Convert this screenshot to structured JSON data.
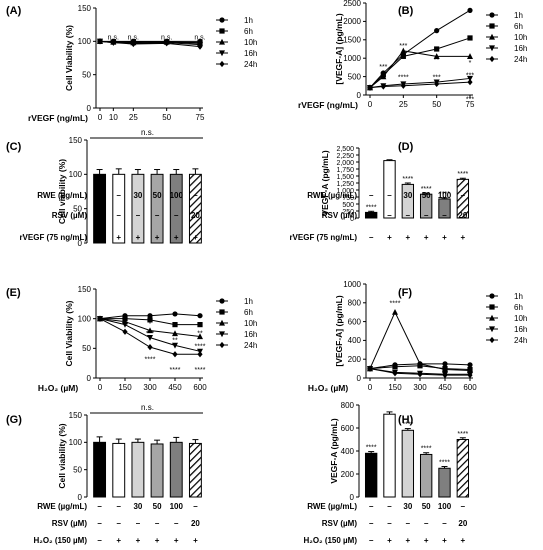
{
  "chart_data": [
    {
      "panel": "(A)",
      "type": "line",
      "ylabel": "Cell Viability (%)",
      "xlabel": "rVEGF (ng/mL)",
      "x": [
        0,
        10,
        25,
        50,
        75
      ],
      "ylim": [
        0,
        150
      ],
      "yticks": [
        0,
        50,
        100,
        150
      ],
      "legend_position": "right",
      "series": [
        {
          "name": "1h",
          "values": [
            100,
            100,
            100,
            100,
            100
          ],
          "marker": "circle"
        },
        {
          "name": "6h",
          "values": [
            100,
            99,
            99,
            99,
            98
          ],
          "marker": "square"
        },
        {
          "name": "10h",
          "values": [
            100,
            99,
            98,
            99,
            97
          ],
          "marker": "triangle-up"
        },
        {
          "name": "16h",
          "values": [
            100,
            98,
            97,
            98,
            95
          ],
          "marker": "triangle-down"
        },
        {
          "name": "24h",
          "values": [
            100,
            98,
            96,
            97,
            92
          ],
          "marker": "diamond"
        }
      ],
      "annotations": [
        {
          "x": 10,
          "y": 103,
          "text": "n.s."
        },
        {
          "x": 25,
          "y": 103,
          "text": "n.s."
        },
        {
          "x": 50,
          "y": 103,
          "text": "n.s."
        },
        {
          "x": 75,
          "y": 103,
          "text": "n.s."
        }
      ]
    },
    {
      "panel": "(B)",
      "type": "line",
      "ylabel": "[VEGF-A] (pg/mL)",
      "xlabel": "rVEGF (ng/mL)",
      "x": [
        0,
        10,
        25,
        50,
        75
      ],
      "ylim": [
        0,
        2500
      ],
      "yticks": [
        0,
        500,
        1000,
        1500,
        2000,
        2500
      ],
      "xtick_labels": [
        "0",
        "25",
        "50",
        "75"
      ],
      "xtick_values": [
        0,
        25,
        50,
        75
      ],
      "legend_position": "right",
      "series": [
        {
          "name": "1h",
          "values": [
            200,
            600,
            1100,
            1750,
            2300
          ],
          "marker": "circle"
        },
        {
          "name": "6h",
          "values": [
            200,
            550,
            1050,
            1250,
            1550
          ],
          "marker": "square"
        },
        {
          "name": "10h",
          "values": [
            200,
            500,
            1200,
            1050,
            1050
          ],
          "marker": "triangle-up"
        },
        {
          "name": "16h",
          "values": [
            200,
            250,
            300,
            350,
            450
          ],
          "marker": "triangle-down"
        },
        {
          "name": "24h",
          "values": [
            200,
            230,
            250,
            300,
            350
          ],
          "marker": "diamond"
        }
      ],
      "annotations": [
        {
          "x": 10,
          "y": 700,
          "text": "***"
        },
        {
          "x": 25,
          "y": 1280,
          "text": "***"
        },
        {
          "x": 25,
          "y": 420,
          "text": "****"
        },
        {
          "x": 50,
          "y": 900,
          "text": "**"
        },
        {
          "x": 50,
          "y": 420,
          "text": "***"
        },
        {
          "x": 75,
          "y": 820,
          "text": "*"
        },
        {
          "x": 75,
          "y": 480,
          "text": "***"
        },
        {
          "x": 75,
          "y": -180,
          "text": "***"
        }
      ]
    },
    {
      "panel": "(C)",
      "type": "bar",
      "ylabel": "Cell viability (%)",
      "ylim": [
        0,
        150
      ],
      "yticks": [
        0,
        50,
        100,
        150
      ],
      "values": [
        100,
        100,
        100,
        100,
        100,
        100
      ],
      "errors": [
        7,
        8,
        7,
        7,
        7,
        8
      ],
      "fills": [
        "black",
        "white",
        "lightgray",
        "darkgray",
        "gray",
        "hatch"
      ],
      "significance": "n.s.",
      "conditions": [
        {
          "label": "RWE (µg/mL)",
          "values": [
            "–",
            "–",
            "30",
            "50",
            "100",
            "–"
          ]
        },
        {
          "label": "RSV (µM)",
          "values": [
            "–",
            "–",
            "–",
            "–",
            "–",
            "20"
          ]
        },
        {
          "label": "rVEGF (75 ng/mL)",
          "values": [
            "–",
            "+",
            "+",
            "+",
            "+",
            "+"
          ]
        }
      ]
    },
    {
      "panel": "(D)",
      "type": "bar",
      "ylabel": "VEGF-A (pg/mL)",
      "ylim": [
        0,
        2500
      ],
      "yticks": [
        0,
        250,
        500,
        750,
        1000,
        1250,
        1500,
        1750,
        2000,
        2250,
        2500
      ],
      "ytick_labels": [
        "0",
        "250",
        "500",
        "750",
        "1,000",
        "1,250",
        "1,500",
        "1,750",
        "2,000",
        "2,250",
        "2,500"
      ],
      "values": [
        200,
        2050,
        1200,
        850,
        680,
        1380
      ],
      "errors": [
        40,
        30,
        50,
        40,
        40,
        40
      ],
      "fills": [
        "black",
        "white",
        "lightgray",
        "darkgray",
        "gray",
        "hatch"
      ],
      "bar_labels": [
        "****",
        "",
        "****",
        "****",
        "****",
        "****"
      ],
      "conditions": [
        {
          "label": "RWE (µg/mL)",
          "values": [
            "–",
            "–",
            "30",
            "50",
            "100",
            "–"
          ]
        },
        {
          "label": "RSV (µM)",
          "values": [
            "–",
            "–",
            "–",
            "–",
            "–",
            "20"
          ]
        },
        {
          "label": "rVEGF (75 ng/mL)",
          "values": [
            "–",
            "+",
            "+",
            "+",
            "+",
            "+"
          ]
        }
      ]
    },
    {
      "panel": "(E)",
      "type": "line",
      "ylabel": "Cell Viability (%)",
      "xlabel": "H₂O₂ (µM)",
      "x": [
        0,
        150,
        300,
        450,
        600
      ],
      "ylim": [
        0,
        150
      ],
      "yticks": [
        0,
        50,
        100,
        150
      ],
      "legend_position": "right",
      "series": [
        {
          "name": "1h",
          "values": [
            100,
            105,
            105,
            108,
            105
          ],
          "marker": "circle"
        },
        {
          "name": "6h",
          "values": [
            100,
            100,
            98,
            90,
            90
          ],
          "marker": "square"
        },
        {
          "name": "10h",
          "values": [
            100,
            95,
            80,
            75,
            70
          ],
          "marker": "triangle-up"
        },
        {
          "name": "16h",
          "values": [
            100,
            90,
            68,
            55,
            45
          ],
          "marker": "triangle-down"
        },
        {
          "name": "24h",
          "values": [
            100,
            78,
            52,
            40,
            40
          ],
          "marker": "diamond"
        }
      ],
      "annotations": [
        {
          "x": 300,
          "y": 88,
          "text": "*"
        },
        {
          "x": 300,
          "y": 72,
          "text": "***"
        },
        {
          "x": 300,
          "y": 28,
          "text": "****"
        },
        {
          "x": 450,
          "y": 60,
          "text": "**"
        },
        {
          "x": 450,
          "y": 10,
          "text": "****"
        },
        {
          "x": 600,
          "y": 72,
          "text": "**"
        },
        {
          "x": 600,
          "y": 50,
          "text": "****"
        },
        {
          "x": 600,
          "y": 10,
          "text": "****"
        }
      ]
    },
    {
      "panel": "(F)",
      "type": "line",
      "ylabel": "[VEGF-A] (pg/mL)",
      "xlabel": "H₂O₂ (µM)",
      "x": [
        0,
        150,
        300,
        450,
        600
      ],
      "ylim": [
        0,
        1000
      ],
      "yticks": [
        0,
        200,
        400,
        600,
        800,
        1000
      ],
      "legend_position": "right",
      "series": [
        {
          "name": "1h",
          "values": [
            100,
            140,
            150,
            150,
            140
          ],
          "marker": "circle"
        },
        {
          "name": "6h",
          "values": [
            100,
            120,
            130,
            100,
            90
          ],
          "marker": "square"
        },
        {
          "name": "10h",
          "values": [
            100,
            700,
            150,
            90,
            80
          ],
          "marker": "triangle-up"
        },
        {
          "name": "16h",
          "values": [
            100,
            60,
            50,
            40,
            40
          ],
          "marker": "triangle-down"
        },
        {
          "name": "24h",
          "values": [
            100,
            50,
            40,
            30,
            30
          ],
          "marker": "diamond"
        }
      ],
      "annotations": [
        {
          "x": 150,
          "y": 770,
          "text": "****"
        }
      ]
    },
    {
      "panel": "(G)",
      "type": "bar",
      "ylabel": "Cell viability (%)",
      "ylim": [
        0,
        150
      ],
      "yticks": [
        0,
        50,
        100,
        150
      ],
      "values": [
        100,
        98,
        100,
        97,
        100,
        98
      ],
      "errors": [
        10,
        8,
        6,
        7,
        9,
        7
      ],
      "fills": [
        "black",
        "white",
        "lightgray",
        "darkgray",
        "gray",
        "hatch"
      ],
      "significance": "n.s.",
      "conditions": [
        {
          "label": "RWE (µg/mL)",
          "values": [
            "–",
            "–",
            "30",
            "50",
            "100",
            "–"
          ]
        },
        {
          "label": "RSV (µM)",
          "values": [
            "–",
            "–",
            "–",
            "–",
            "–",
            "20"
          ]
        },
        {
          "label": "H₂O₂ (150 µM)",
          "values": [
            "–",
            "+",
            "+",
            "+",
            "+",
            "+"
          ]
        }
      ]
    },
    {
      "panel": "(H)",
      "type": "bar",
      "ylabel": "VEGF-A (pg/mL)",
      "ylim": [
        0,
        800
      ],
      "yticks": [
        0,
        200,
        400,
        600,
        800
      ],
      "values": [
        380,
        720,
        580,
        370,
        250,
        500
      ],
      "errors": [
        15,
        20,
        15,
        15,
        15,
        15
      ],
      "fills": [
        "black",
        "white",
        "lightgray",
        "darkgray",
        "gray",
        "hatch"
      ],
      "bar_labels": [
        "****",
        "",
        "****",
        "****",
        "****",
        "****"
      ],
      "conditions": [
        {
          "label": "RWE (µg/mL)",
          "values": [
            "–",
            "–",
            "30",
            "50",
            "100",
            "–"
          ]
        },
        {
          "label": "RSV (µM)",
          "values": [
            "–",
            "–",
            "–",
            "–",
            "–",
            "20"
          ]
        },
        {
          "label": "H₂O₂ (150 µM)",
          "values": [
            "–",
            "+",
            "+",
            "+",
            "+",
            "+"
          ]
        }
      ]
    }
  ]
}
